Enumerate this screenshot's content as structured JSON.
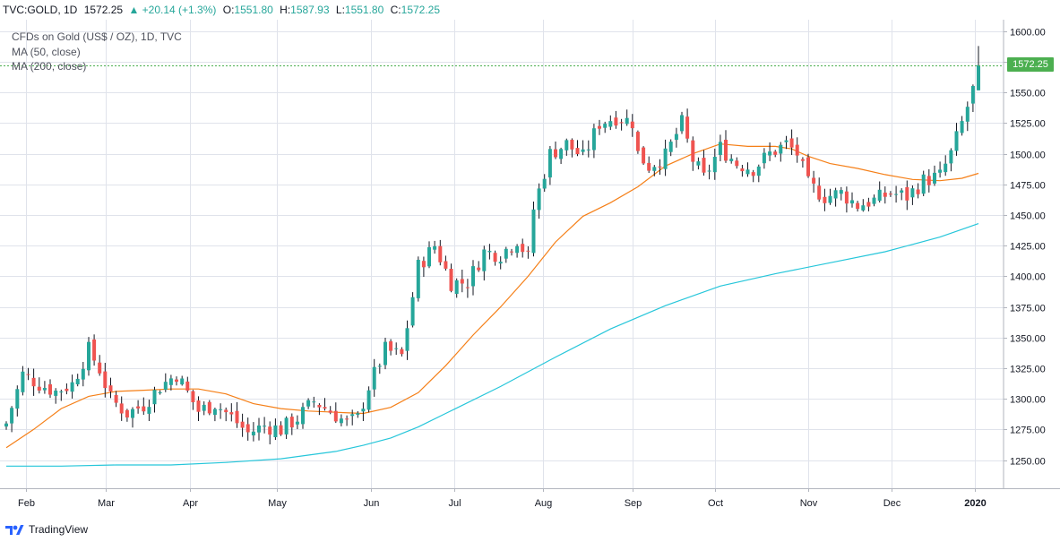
{
  "header": {
    "symbol": "TVC:GOLD, 1D",
    "last": "1572.25",
    "arrow": "▲",
    "change": "+20.14 (+1.3%)",
    "open_label": "O:",
    "open": "1551.80",
    "high_label": "H:",
    "high": "1587.93",
    "low_label": "L:",
    "low": "1551.80",
    "close_label": "C:",
    "close": "1572.25"
  },
  "legend": {
    "title": "CFDs on Gold (US$ / OZ), 1D, TVC",
    "ma50": "MA (50, close)",
    "ma200": "MA (200, close)"
  },
  "price_label": "1572.25",
  "footer": {
    "brand": "TradingView"
  },
  "colors": {
    "up": "#26a69a",
    "down": "#ef5350",
    "ma50": "#f57f17",
    "ma200": "#26c6da",
    "grid": "#e0e3eb",
    "lastline": "#4caf50"
  },
  "chart_data": {
    "type": "candlestick",
    "title": "CFDs on Gold (US$ / OZ), 1D, TVC",
    "ylim": [
      1230,
      1610
    ],
    "y_ticks": [
      1250,
      1275,
      1300,
      1325,
      1350,
      1375,
      1400,
      1425,
      1450,
      1475,
      1500,
      1525,
      1550,
      1575,
      1600
    ],
    "x_ticks": [
      "Feb",
      "Mar",
      "Apr",
      "May",
      "Jun",
      "Jul",
      "Aug",
      "Sep",
      "Oct",
      "Nov",
      "Dec",
      "2020"
    ],
    "last_price": 1572.25,
    "close_path": [
      [
        0,
        1280
      ],
      [
        3,
        1320
      ],
      [
        6,
        1312
      ],
      [
        9,
        1306
      ],
      [
        12,
        1312
      ],
      [
        15,
        1340
      ],
      [
        17,
        1324
      ],
      [
        19,
        1300
      ],
      [
        22,
        1288
      ],
      [
        25,
        1295
      ],
      [
        28,
        1310
      ],
      [
        31,
        1320
      ],
      [
        33,
        1305
      ],
      [
        35,
        1290
      ],
      [
        38,
        1296
      ],
      [
        41,
        1285
      ],
      [
        44,
        1272
      ],
      [
        47,
        1278
      ],
      [
        50,
        1275
      ],
      [
        53,
        1284
      ],
      [
        56,
        1298
      ],
      [
        59,
        1290
      ],
      [
        62,
        1280
      ],
      [
        64,
        1284
      ],
      [
        66,
        1310
      ],
      [
        69,
        1340
      ],
      [
        72,
        1335
      ],
      [
        75,
        1408
      ],
      [
        78,
        1425
      ],
      [
        81,
        1395
      ],
      [
        84,
        1395
      ],
      [
        87,
        1420
      ],
      [
        90,
        1418
      ],
      [
        93,
        1430
      ],
      [
        95,
        1415
      ],
      [
        96,
        1455
      ],
      [
        99,
        1500
      ],
      [
        102,
        1508
      ],
      [
        105,
        1497
      ],
      [
        108,
        1525
      ],
      [
        111,
        1530
      ],
      [
        114,
        1526
      ],
      [
        115,
        1500
      ],
      [
        117,
        1490
      ],
      [
        120,
        1498
      ],
      [
        123,
        1525
      ],
      [
        125,
        1495
      ],
      [
        127,
        1480
      ],
      [
        130,
        1505
      ],
      [
        133,
        1492
      ],
      [
        136,
        1488
      ],
      [
        139,
        1500
      ],
      [
        142,
        1508
      ],
      [
        144,
        1500
      ],
      [
        146,
        1475
      ],
      [
        149,
        1465
      ],
      [
        152,
        1468
      ],
      [
        155,
        1458
      ],
      [
        158,
        1462
      ],
      [
        161,
        1468
      ],
      [
        164,
        1465
      ],
      [
        167,
        1478
      ],
      [
        170,
        1482
      ],
      [
        172,
        1500
      ],
      [
        174,
        1525
      ],
      [
        176,
        1552
      ],
      [
        177,
        1572
      ]
    ],
    "series": [
      {
        "name": "MA (50, close)",
        "color": "#f57f17",
        "points": [
          [
            0,
            1260
          ],
          [
            5,
            1275
          ],
          [
            10,
            1292
          ],
          [
            15,
            1302
          ],
          [
            20,
            1306
          ],
          [
            25,
            1307
          ],
          [
            30,
            1308
          ],
          [
            35,
            1308
          ],
          [
            40,
            1304
          ],
          [
            45,
            1296
          ],
          [
            50,
            1292
          ],
          [
            55,
            1290
          ],
          [
            60,
            1289
          ],
          [
            65,
            1288
          ],
          [
            70,
            1293
          ],
          [
            75,
            1305
          ],
          [
            80,
            1327
          ],
          [
            85,
            1352
          ],
          [
            90,
            1375
          ],
          [
            95,
            1400
          ],
          [
            100,
            1428
          ],
          [
            105,
            1449
          ],
          [
            110,
            1460
          ],
          [
            115,
            1473
          ],
          [
            120,
            1490
          ],
          [
            125,
            1500
          ],
          [
            130,
            1508
          ],
          [
            135,
            1506
          ],
          [
            140,
            1506
          ],
          [
            143,
            1504
          ],
          [
            146,
            1498
          ],
          [
            150,
            1492
          ],
          [
            155,
            1488
          ],
          [
            160,
            1483
          ],
          [
            165,
            1479
          ],
          [
            170,
            1478
          ],
          [
            174,
            1480
          ],
          [
            177,
            1484
          ]
        ]
      },
      {
        "name": "MA (200, close)",
        "color": "#26c6da",
        "points": [
          [
            0,
            1245
          ],
          [
            10,
            1245
          ],
          [
            20,
            1246
          ],
          [
            30,
            1246
          ],
          [
            40,
            1248
          ],
          [
            50,
            1251
          ],
          [
            55,
            1254
          ],
          [
            60,
            1257
          ],
          [
            65,
            1262
          ],
          [
            70,
            1268
          ],
          [
            75,
            1277
          ],
          [
            80,
            1288
          ],
          [
            90,
            1310
          ],
          [
            100,
            1334
          ],
          [
            110,
            1357
          ],
          [
            120,
            1376
          ],
          [
            130,
            1392
          ],
          [
            140,
            1402
          ],
          [
            150,
            1411
          ],
          [
            160,
            1420
          ],
          [
            170,
            1432
          ],
          [
            177,
            1443
          ]
        ]
      }
    ]
  }
}
